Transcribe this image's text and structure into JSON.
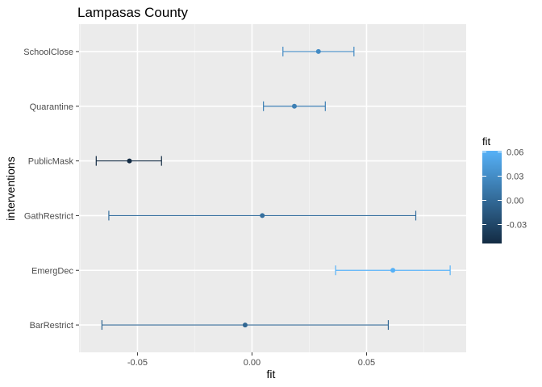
{
  "chart_data": {
    "type": "scatter",
    "title": "Lampasas County",
    "xlabel": "fit",
    "ylabel": "interventions",
    "xlim": [
      -0.0755,
      0.0935
    ],
    "x_ticks": [
      -0.05,
      0.0,
      0.05
    ],
    "x_tick_labels": [
      "-0.05",
      "0.00",
      "0.05"
    ],
    "grid": true,
    "error_bars": true,
    "categories": [
      "SchoolClose",
      "Quarantine",
      "PublicMask",
      "GathRestrict",
      "EmergDec",
      "BarRestrict"
    ],
    "points": [
      {
        "category": "SchoolClose",
        "fit": 0.029,
        "lower": 0.0135,
        "upper": 0.0445
      },
      {
        "category": "Quarantine",
        "fit": 0.0185,
        "lower": 0.005,
        "upper": 0.032
      },
      {
        "category": "PublicMask",
        "fit": -0.0535,
        "lower": -0.068,
        "upper": -0.0395
      },
      {
        "category": "GathRestrict",
        "fit": 0.0045,
        "lower": -0.0625,
        "upper": 0.0715
      },
      {
        "category": "EmergDec",
        "fit": 0.0615,
        "lower": 0.0365,
        "upper": 0.0865
      },
      {
        "category": "BarRestrict",
        "fit": -0.003,
        "lower": -0.0655,
        "upper": 0.0595
      }
    ],
    "legend": {
      "title": "fit",
      "placement": "right",
      "labels": [
        "0.06",
        "0.03",
        "0.00",
        "-0.03"
      ],
      "values": [
        0.06,
        0.03,
        0.0,
        -0.03
      ],
      "range": [
        -0.0535,
        0.0615
      ],
      "color_low": "#132B43",
      "color_high": "#56B1F7"
    },
    "colors": {
      "panel_background": "#EBEBEB",
      "grid_major": "#FFFFFF",
      "grid_minor": "#F5F5F5"
    }
  }
}
